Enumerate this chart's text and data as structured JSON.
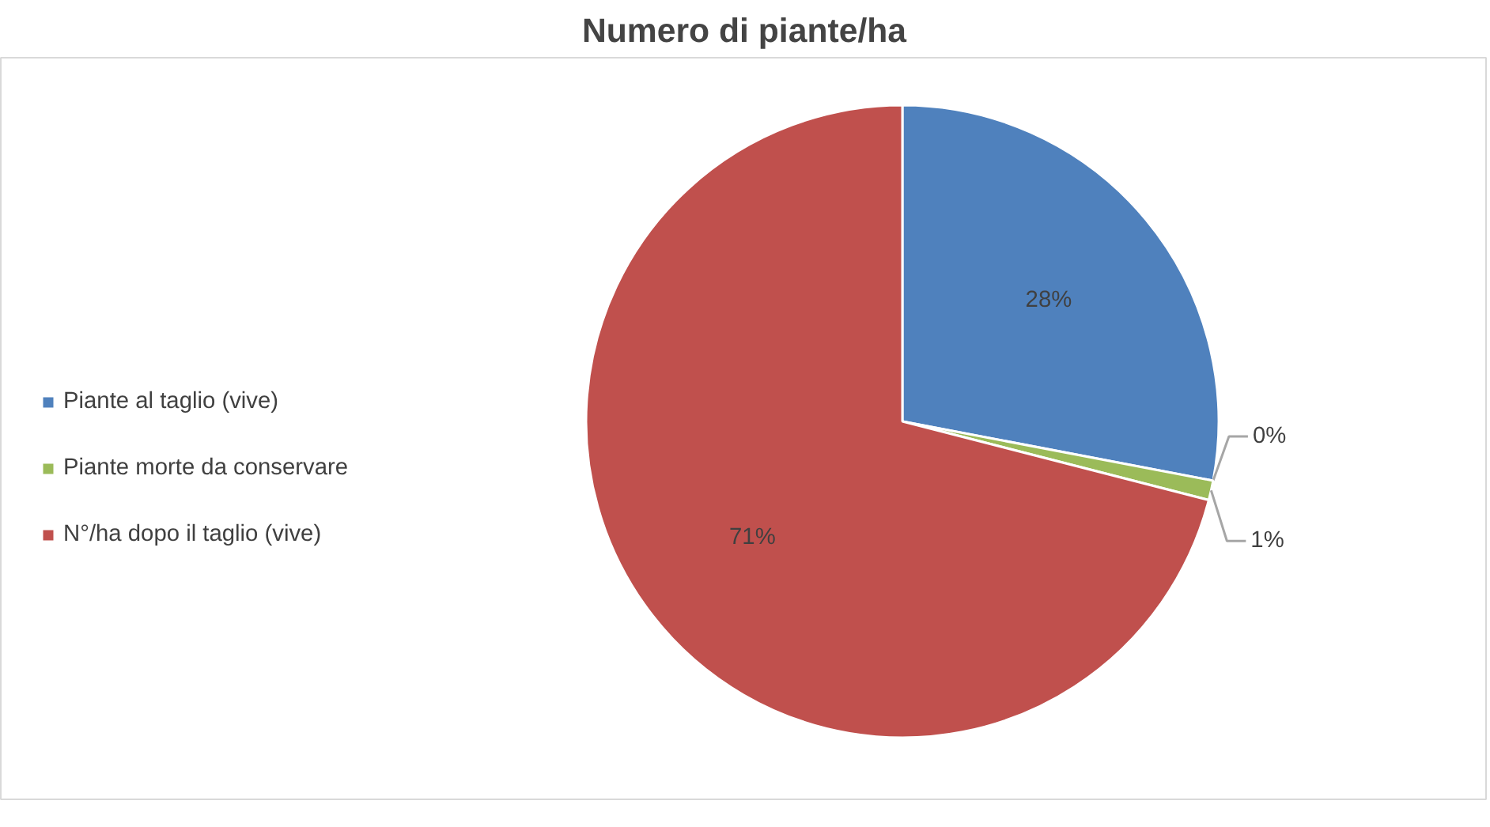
{
  "chart_data": {
    "type": "pie",
    "title": "Numero di piante/ha",
    "categories": [
      "Piante al taglio (vive)",
      null,
      "Piante morte da conservare",
      "N°/ha dopo il taglio (vive)"
    ],
    "values": [
      28,
      0,
      1,
      71
    ],
    "colors": [
      "#4f81bd",
      "#8064a2",
      "#9bbb59",
      "#c0504d"
    ],
    "value_labels": [
      "28%",
      "0%",
      "1%",
      "71%"
    ],
    "legend": "left"
  }
}
